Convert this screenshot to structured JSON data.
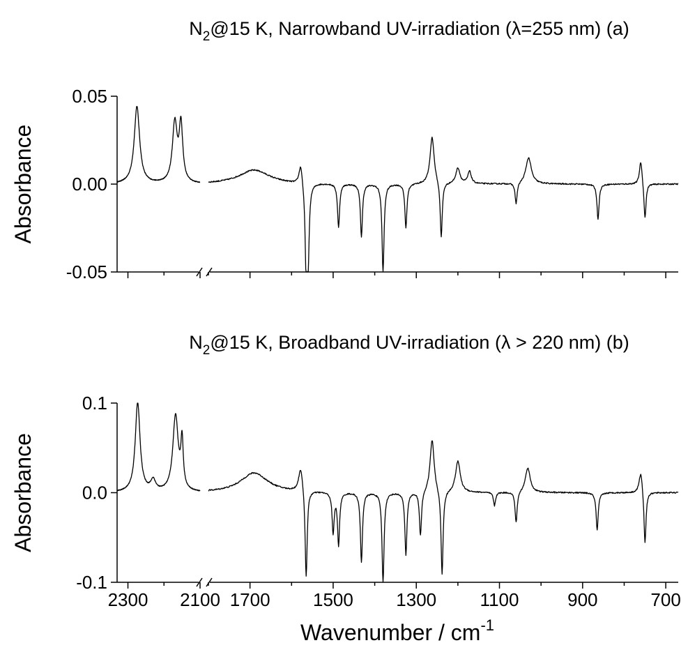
{
  "chart_data": [
    {
      "type": "line",
      "panel": "a",
      "title_parts": [
        "N",
        "2",
        "@15 K, Narrowband UV-irradiation (λ=255 nm)  (a)"
      ],
      "ylabel": "Absorbance",
      "ylim": [
        -0.05,
        0.05
      ],
      "yticks": [
        -0.05,
        0.0,
        0.05
      ],
      "ytick_labels": [
        "-0.05",
        "0.00",
        "0.05"
      ],
      "x_axis_break": [
        2100,
        1800
      ],
      "x_segments": [
        [
          2330,
          2100
        ],
        [
          1800,
          670
        ]
      ],
      "baseline": 0.0,
      "features": [
        {
          "x": 2275,
          "y": 0.044,
          "w": 9
        },
        {
          "x": 2170,
          "y": 0.034,
          "w": 8
        },
        {
          "x": 2153,
          "y": 0.032,
          "w": 6
        },
        {
          "x": 1690,
          "y": 0.008,
          "w": 45
        },
        {
          "x": 1578,
          "y": 0.012,
          "w": 5
        },
        {
          "x": 1565,
          "y": -0.048,
          "w": 3
        },
        {
          "x": 1560,
          "y": -0.04,
          "w": 3
        },
        {
          "x": 1487,
          "y": -0.025,
          "w": 3
        },
        {
          "x": 1432,
          "y": -0.03,
          "w": 3
        },
        {
          "x": 1380,
          "y": -0.05,
          "w": 3
        },
        {
          "x": 1325,
          "y": -0.025,
          "w": 3
        },
        {
          "x": 1262,
          "y": 0.027,
          "w": 6
        },
        {
          "x": 1240,
          "y": -0.032,
          "w": 3
        },
        {
          "x": 1200,
          "y": 0.009,
          "w": 6
        },
        {
          "x": 1172,
          "y": 0.007,
          "w": 5
        },
        {
          "x": 1060,
          "y": -0.012,
          "w": 3
        },
        {
          "x": 1030,
          "y": 0.015,
          "w": 8
        },
        {
          "x": 863,
          "y": -0.02,
          "w": 3
        },
        {
          "x": 760,
          "y": 0.014,
          "w": 4
        },
        {
          "x": 750,
          "y": -0.021,
          "w": 3
        }
      ]
    },
    {
      "type": "line",
      "panel": "b",
      "title_parts": [
        "N",
        "2",
        "@15 K, Broadband UV-irradiation (λ > 220 nm)  (b)"
      ],
      "ylabel": "Absorbance",
      "xlabel_parts": [
        "Wavenumber / cm",
        "-1"
      ],
      "ylim": [
        -0.1,
        0.1
      ],
      "yticks": [
        -0.1,
        0.0,
        0.1
      ],
      "ytick_labels": [
        "-0.1",
        "0.0",
        "0.1"
      ],
      "xtick_labels": [
        "2300",
        "2100",
        "1700",
        "1500",
        "1300",
        "1100",
        "900",
        "700"
      ],
      "x_axis_break": [
        2100,
        1800
      ],
      "x_segments": [
        [
          2330,
          2100
        ],
        [
          1800,
          670
        ]
      ],
      "baseline": 0.0,
      "features": [
        {
          "x": 2273,
          "y": 0.1,
          "w": 8
        },
        {
          "x": 2230,
          "y": 0.012,
          "w": 8
        },
        {
          "x": 2168,
          "y": 0.085,
          "w": 9
        },
        {
          "x": 2150,
          "y": 0.052,
          "w": 4
        },
        {
          "x": 1690,
          "y": 0.022,
          "w": 40
        },
        {
          "x": 1578,
          "y": 0.028,
          "w": 6
        },
        {
          "x": 1565,
          "y": -0.1,
          "w": 3
        },
        {
          "x": 1500,
          "y": -0.045,
          "w": 3
        },
        {
          "x": 1487,
          "y": -0.058,
          "w": 3
        },
        {
          "x": 1432,
          "y": -0.078,
          "w": 3
        },
        {
          "x": 1380,
          "y": -0.1,
          "w": 3
        },
        {
          "x": 1325,
          "y": -0.07,
          "w": 3
        },
        {
          "x": 1290,
          "y": -0.05,
          "w": 3
        },
        {
          "x": 1262,
          "y": 0.06,
          "w": 6
        },
        {
          "x": 1238,
          "y": -0.095,
          "w": 3
        },
        {
          "x": 1200,
          "y": 0.035,
          "w": 7
        },
        {
          "x": 1112,
          "y": -0.015,
          "w": 3
        },
        {
          "x": 1060,
          "y": -0.035,
          "w": 3
        },
        {
          "x": 1032,
          "y": 0.028,
          "w": 7
        },
        {
          "x": 865,
          "y": -0.042,
          "w": 3
        },
        {
          "x": 760,
          "y": 0.025,
          "w": 5
        },
        {
          "x": 750,
          "y": -0.06,
          "w": 3
        }
      ]
    }
  ]
}
